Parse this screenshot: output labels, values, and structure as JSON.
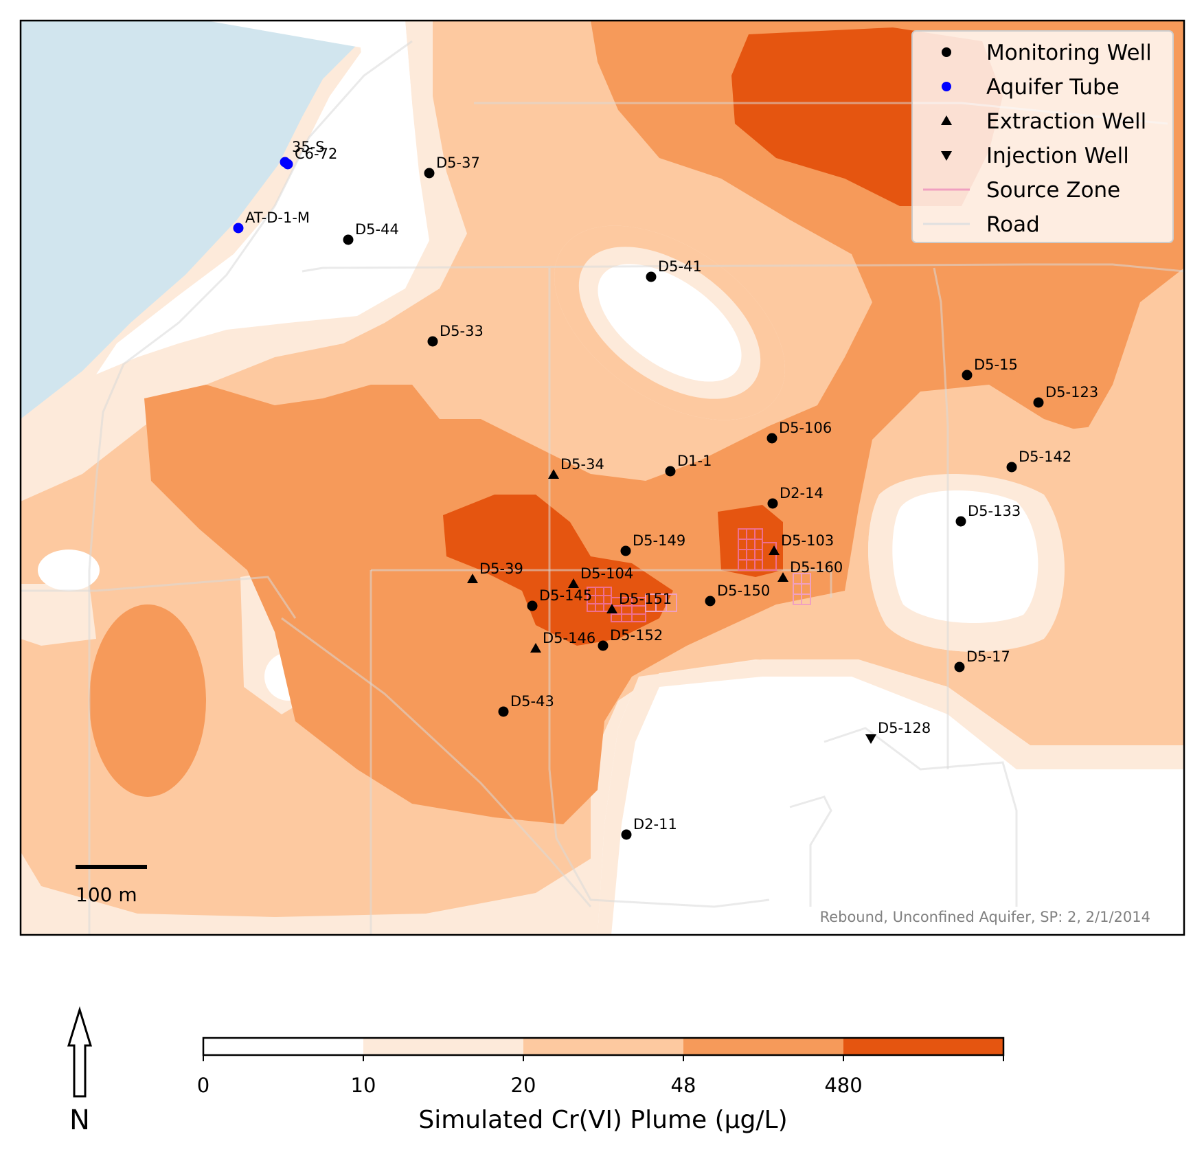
{
  "map": {
    "caption": "Rebound, Unconfined Aquifer, SP: 2, 2/1/2014",
    "scale_bar_label": "100 m",
    "north_label": "N"
  },
  "legend": {
    "items": [
      {
        "label": "Monitoring Well",
        "symbol": "circle",
        "color": "#000000"
      },
      {
        "label": "Aquifer Tube",
        "symbol": "circle",
        "color": "#0000ff"
      },
      {
        "label": "Extraction Well",
        "symbol": "triangle-up",
        "color": "#000000"
      },
      {
        "label": "Injection Well",
        "symbol": "triangle-down",
        "color": "#000000"
      },
      {
        "label": "Source Zone",
        "symbol": "line",
        "color": "#f0a0c0"
      },
      {
        "label": "Road",
        "symbol": "line",
        "color": "#e0e0e0"
      }
    ]
  },
  "colorbar": {
    "title": "Simulated Cr(VI) Plume (µg/L)",
    "ticks": [
      "0",
      "10",
      "20",
      "48",
      "480"
    ],
    "colors": [
      "#ffffff",
      "#fdeada",
      "#fdc9a0",
      "#f69a5a",
      "#e55510"
    ]
  },
  "wells": [
    {
      "name": "D5-37",
      "type": "monitoring"
    },
    {
      "name": "D5-44",
      "type": "monitoring"
    },
    {
      "name": "D5-41",
      "type": "monitoring"
    },
    {
      "name": "D5-33",
      "type": "monitoring"
    },
    {
      "name": "D5-15",
      "type": "monitoring"
    },
    {
      "name": "D5-123",
      "type": "monitoring"
    },
    {
      "name": "D5-106",
      "type": "monitoring"
    },
    {
      "name": "D1-1",
      "type": "monitoring"
    },
    {
      "name": "D5-142",
      "type": "monitoring"
    },
    {
      "name": "D2-14",
      "type": "monitoring"
    },
    {
      "name": "D5-133",
      "type": "monitoring"
    },
    {
      "name": "D5-149",
      "type": "monitoring"
    },
    {
      "name": "D5-145",
      "type": "monitoring"
    },
    {
      "name": "D5-150",
      "type": "monitoring"
    },
    {
      "name": "D5-152",
      "type": "monitoring"
    },
    {
      "name": "D5-17",
      "type": "monitoring"
    },
    {
      "name": "D5-43",
      "type": "monitoring"
    },
    {
      "name": "D2-11",
      "type": "monitoring"
    },
    {
      "name": "C6-72",
      "type": "aquifer-tube"
    },
    {
      "name": "35-S",
      "type": "aquifer-tube"
    },
    {
      "name": "AT-D-1-M",
      "type": "aquifer-tube"
    },
    {
      "name": "D5-34",
      "type": "extraction"
    },
    {
      "name": "D5-103",
      "type": "extraction"
    },
    {
      "name": "D5-160",
      "type": "extraction"
    },
    {
      "name": "D5-39",
      "type": "extraction"
    },
    {
      "name": "D5-104",
      "type": "extraction"
    },
    {
      "name": "D5-151",
      "type": "extraction"
    },
    {
      "name": "D5-146",
      "type": "extraction"
    },
    {
      "name": "D5-128",
      "type": "injection"
    }
  ]
}
